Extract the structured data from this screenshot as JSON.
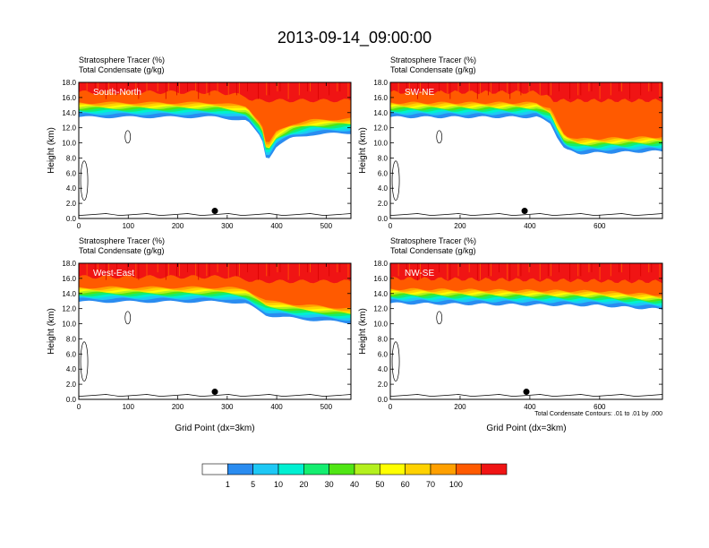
{
  "title": "2013-09-14_09:00:00",
  "y_axis_label": "Height (km)",
  "x_axis_label": "Grid Point (dx=3km)",
  "subtitle_tracer": "Stratosphere Tracer",
  "subtitle_tracer_units": "(%)",
  "subtitle_condensate": "Total Condensate",
  "subtitle_condensate_units": "(g/kg)",
  "contour_note": "Total Condensate Contours: .01 to .01 by .000",
  "colors": {
    "white": "#ffffff",
    "c1": "#2a8cf0",
    "c5": "#1ec8f5",
    "c10": "#00f0d2",
    "c20": "#14ee70",
    "c30": "#50e614",
    "c40": "#b4f01e",
    "c50": "#ffff00",
    "c60": "#ffd200",
    "c70": "#ffa000",
    "c80": "#ff5a00",
    "c100": "#f01414"
  },
  "colorbar": {
    "colors": [
      "#ffffff",
      "#2a8cf0",
      "#1ec8f5",
      "#00f0d2",
      "#14ee70",
      "#50e614",
      "#b4f01e",
      "#ffff00",
      "#ffd200",
      "#ffa000",
      "#ff5a00",
      "#f01414"
    ],
    "labels": [
      "1",
      "5",
      "10",
      "20",
      "30",
      "40",
      "50",
      "60",
      "70",
      "100"
    ]
  },
  "chart_data": [
    {
      "type": "contour",
      "panel": "South-North",
      "title": "South-North",
      "xlabel": "",
      "ylabel": "Height (km)",
      "xlim": [
        0,
        550
      ],
      "ylim": [
        0,
        18
      ],
      "xticks": [
        0,
        100,
        200,
        300,
        400,
        500
      ],
      "yticks": [
        "0.0",
        "2.0",
        "4.0",
        "6.0",
        "8.0",
        "10.0",
        "12.0",
        "14.0",
        "16.0",
        "18.0"
      ],
      "tropopause": {
        "x": [
          0,
          280,
          340,
          370,
          380,
          400,
          430,
          470,
          550
        ],
        "y": [
          14.3,
          14.3,
          13.8,
          11.5,
          8.5,
          10.5,
          11.5,
          12.0,
          12.2
        ]
      },
      "marker": {
        "x": 275,
        "y": 1.0
      }
    },
    {
      "type": "contour",
      "panel": "SW-NE",
      "title": "SW-NE",
      "xlabel": "",
      "ylabel": "Height (km)",
      "xlim": [
        0,
        780
      ],
      "ylim": [
        0,
        18
      ],
      "xticks": [
        0,
        200,
        400,
        600
      ],
      "yticks": [
        "0.0",
        "2.0",
        "4.0",
        "6.0",
        "8.0",
        "10.0",
        "12.0",
        "14.0",
        "16.0",
        "18.0"
      ],
      "tropopause": {
        "x": [
          0,
          420,
          460,
          480,
          500,
          540,
          780
        ],
        "y": [
          14.3,
          14.3,
          13.5,
          11.5,
          10.0,
          9.5,
          9.8
        ]
      },
      "marker": {
        "x": 385,
        "y": 1.0
      }
    },
    {
      "type": "contour",
      "panel": "West-East",
      "title": "West-East",
      "xlabel": "Grid Point (dx=3km)",
      "ylabel": "Height (km)",
      "xlim": [
        0,
        550
      ],
      "ylim": [
        0,
        18
      ],
      "xticks": [
        0,
        100,
        200,
        300,
        400,
        500
      ],
      "yticks": [
        "0.0",
        "2.0",
        "4.0",
        "6.0",
        "8.0",
        "10.0",
        "12.0",
        "14.0",
        "16.0",
        "18.0"
      ],
      "tropopause": {
        "x": [
          0,
          300,
          340,
          380,
          450,
          550
        ],
        "y": [
          13.8,
          13.8,
          13.5,
          12.0,
          11.5,
          11.0
        ]
      },
      "marker": {
        "x": 275,
        "y": 1.0
      }
    },
    {
      "type": "contour",
      "panel": "NW-SE",
      "title": "NW-SE",
      "xlabel": "Grid Point (dx=3km)",
      "ylabel": "Height (km)",
      "xlim": [
        0,
        780
      ],
      "ylim": [
        0,
        18
      ],
      "xticks": [
        0,
        200,
        400,
        600
      ],
      "yticks": [
        "0.0",
        "2.0",
        "4.0",
        "6.0",
        "8.0",
        "10.0",
        "12.0",
        "14.0",
        "16.0",
        "18.0"
      ],
      "tropopause": {
        "x": [
          0,
          200,
          400,
          600,
          700,
          780
        ],
        "y": [
          13.6,
          13.5,
          13.4,
          13.3,
          13.0,
          12.8
        ]
      },
      "marker": {
        "x": 390,
        "y": 1.0
      }
    }
  ]
}
